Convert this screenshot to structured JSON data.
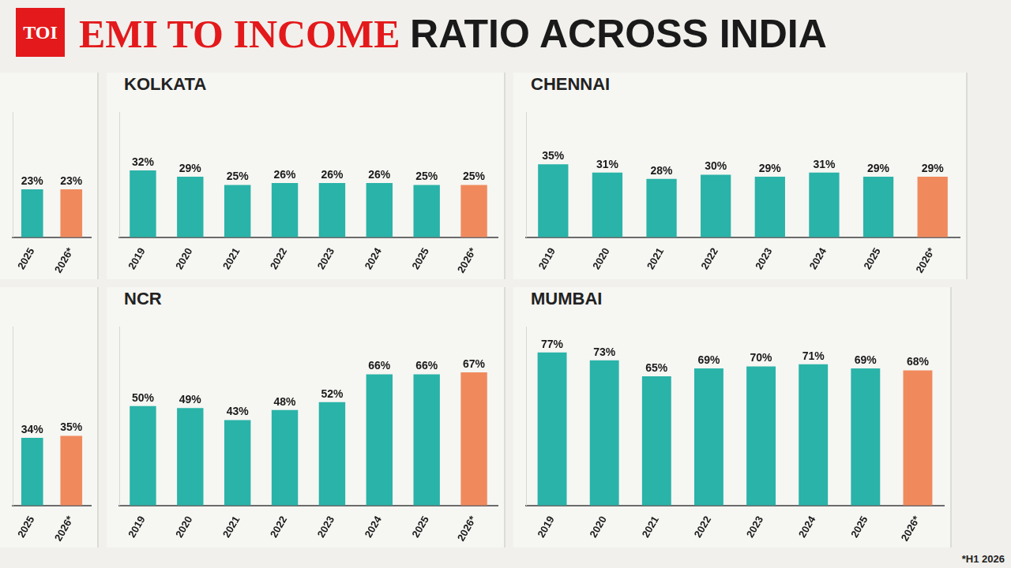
{
  "title": "EMI TO INCOME RATIO ACROSS INDIA",
  "logo": "TOI",
  "note": "*H1 2026",
  "chart_data": [
    {
      "type": "bar",
      "categories": [
        "2025",
        "2026*"
      ],
      "values": [
        23,
        23
      ],
      "value_labels": [
        "23%",
        "23%"
      ],
      "colors": [
        "#2ab3a8",
        "#f08a5d"
      ],
      "ylim": [
        0,
        60
      ],
      "grid": false,
      "data_labels": true,
      "tick_labels": "x"
    },
    {
      "type": "bar",
      "title": "KOLKATA",
      "categories": [
        "2019",
        "2020",
        "2021",
        "2022",
        "2023",
        "2024",
        "2025",
        "2026*"
      ],
      "values": [
        32,
        29,
        25,
        26,
        26,
        26,
        25,
        25
      ],
      "value_labels": [
        "32%",
        "29%",
        "25%",
        "26%",
        "26%",
        "26%",
        "25%",
        "25%"
      ],
      "colors": [
        "#2ab3a8",
        "#2ab3a8",
        "#2ab3a8",
        "#2ab3a8",
        "#2ab3a8",
        "#2ab3a8",
        "#2ab3a8",
        "#f08a5d"
      ],
      "ylim": [
        0,
        60
      ],
      "grid": false,
      "data_labels": true,
      "tick_labels": "x"
    },
    {
      "type": "bar",
      "title": "CHENNAI",
      "categories": [
        "2019",
        "2020",
        "2021",
        "2022",
        "2023",
        "2024",
        "2025",
        "2026*"
      ],
      "values": [
        35,
        31,
        28,
        30,
        29,
        31,
        29,
        29
      ],
      "value_labels": [
        "35%",
        "31%",
        "28%",
        "30%",
        "29%",
        "31%",
        "29%",
        "29%"
      ],
      "colors": [
        "#2ab3a8",
        "#2ab3a8",
        "#2ab3a8",
        "#2ab3a8",
        "#2ab3a8",
        "#2ab3a8",
        "#2ab3a8",
        "#f08a5d"
      ],
      "ylim": [
        0,
        60
      ],
      "grid": false,
      "data_labels": true,
      "tick_labels": "x"
    },
    {
      "type": "bar",
      "categories": [
        "2025",
        "2026*"
      ],
      "values": [
        34,
        35
      ],
      "value_labels": [
        "34%",
        "35%"
      ],
      "colors": [
        "#2ab3a8",
        "#f08a5d"
      ],
      "ylim": [
        0,
        90
      ],
      "grid": false,
      "data_labels": true,
      "tick_labels": "x"
    },
    {
      "type": "bar",
      "title": "NCR",
      "categories": [
        "2019",
        "2020",
        "2021",
        "2022",
        "2023",
        "2024",
        "2025",
        "2026*"
      ],
      "values": [
        50,
        49,
        43,
        48,
        52,
        66,
        66,
        67
      ],
      "value_labels": [
        "50%",
        "49%",
        "43%",
        "48%",
        "52%",
        "66%",
        "66%",
        "67%"
      ],
      "colors": [
        "#2ab3a8",
        "#2ab3a8",
        "#2ab3a8",
        "#2ab3a8",
        "#2ab3a8",
        "#2ab3a8",
        "#2ab3a8",
        "#f08a5d"
      ],
      "ylim": [
        0,
        90
      ],
      "grid": false,
      "data_labels": true,
      "tick_labels": "x"
    },
    {
      "type": "bar",
      "title": "MUMBAI",
      "categories": [
        "2019",
        "2020",
        "2021",
        "2022",
        "2023",
        "2024",
        "2025",
        "2026*"
      ],
      "values": [
        77,
        73,
        65,
        69,
        70,
        71,
        69,
        68
      ],
      "value_labels": [
        "77%",
        "73%",
        "65%",
        "69%",
        "70%",
        "71%",
        "69%",
        "68%"
      ],
      "colors": [
        "#2ab3a8",
        "#2ab3a8",
        "#2ab3a8",
        "#2ab3a8",
        "#2ab3a8",
        "#2ab3a8",
        "#2ab3a8",
        "#f08a5d"
      ],
      "ylim": [
        0,
        90
      ],
      "grid": false,
      "data_labels": true,
      "tick_labels": "x"
    }
  ]
}
